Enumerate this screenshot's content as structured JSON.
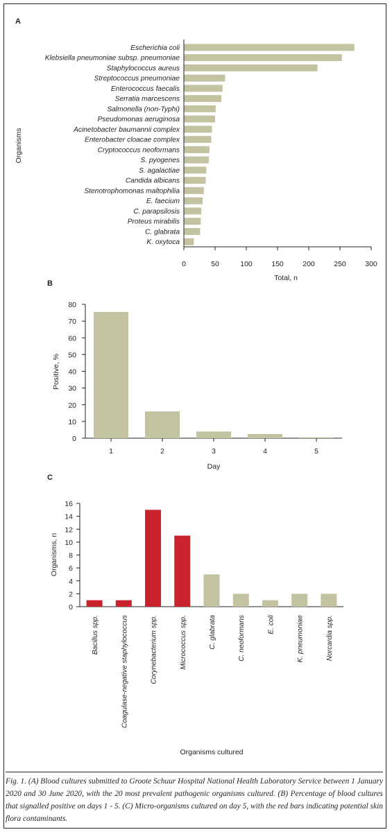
{
  "colors": {
    "bar": "#c4c3a1",
    "contaminant": "#c8232c",
    "axis": "#231f20"
  },
  "caption": "Fig. 1. (A) Blood cultures submitted to Groote Schuur Hospital National Health Laboratory Service between 1 January 2020 and 30 June 2020, with the 20 most prevalent pathogenic organisms cultured. (B) Percentage of blood cultures that signalled positive on days 1 - 5. (C) Micro-organisms cultured on day 5, with the red bars indicating potential skin flora contaminants.",
  "chart_data": [
    {
      "panel": "A",
      "type": "bar",
      "orientation": "horizontal",
      "categories": [
        "Escherichia coli",
        "Klebsiella pneumoniae subsp. pneumoniae",
        "Staphylococcus aureus",
        "Streptococcus pneumoniae",
        "Enterococcus faecalis",
        "Serratia marcescens",
        "Salmonella (non-Typhi)",
        "Pseudomonas aeruginosa",
        "Acinetobacter baumannii complex",
        "Enterobacter cloacae complex",
        "Cryptococcus neoformans",
        "S. pyogenes",
        "S. agalactiae",
        "Candida albicans",
        "Stenotrophomonas maltophilia",
        "E. faecium",
        "C. parapsilosis",
        "Proteus mirabilis",
        "C. glabrata",
        "K. oxytoca"
      ],
      "values": [
        273,
        253,
        214,
        66,
        62,
        60,
        51,
        50,
        45,
        44,
        41,
        40,
        36,
        35,
        32,
        30,
        28,
        27,
        26,
        16
      ],
      "xlabel": "Total, n",
      "ylabel": "Organisms",
      "xlim": [
        0,
        300
      ],
      "xticks": [
        "0",
        "50",
        "100",
        "150",
        "200",
        "250",
        "300"
      ]
    },
    {
      "panel": "B",
      "type": "bar",
      "categories": [
        "1",
        "2",
        "3",
        "4",
        "5"
      ],
      "values": [
        75.5,
        16,
        4,
        2.5,
        0.5
      ],
      "xlabel": "Day",
      "ylabel": "Positive, %",
      "ylim": [
        0,
        80
      ],
      "yticks": [
        "0",
        "10",
        "20",
        "30",
        "40",
        "50",
        "60",
        "70",
        "80"
      ]
    },
    {
      "panel": "C",
      "type": "bar",
      "categories": [
        "Bacillus spp.",
        "Coagulase-negative staphylococcus",
        "Corynebacterium spp.",
        "Micrococcus spp.",
        "C. glabrata",
        "C. neoformans",
        "E. coli",
        "K. pneumoniae",
        "Norcardia spp."
      ],
      "values": [
        1,
        1,
        15,
        11,
        5,
        2,
        1,
        2,
        2
      ],
      "contaminant": [
        true,
        true,
        true,
        true,
        false,
        false,
        false,
        false,
        false
      ],
      "xlabel": "Organisms cultured",
      "ylabel": "Organisms, n",
      "ylim": [
        0,
        16
      ],
      "yticks": [
        "0",
        "2",
        "4",
        "6",
        "8",
        "10",
        "12",
        "14",
        "16"
      ]
    }
  ]
}
